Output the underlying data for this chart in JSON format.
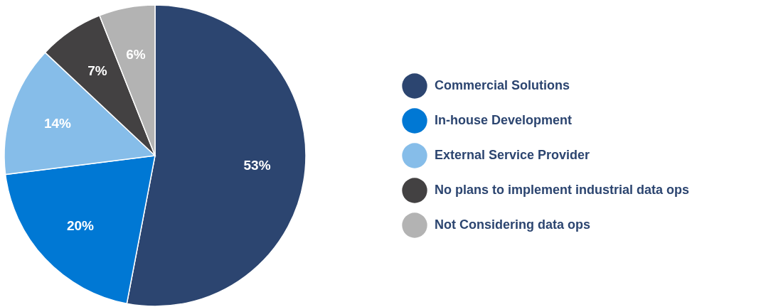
{
  "chart_data": {
    "type": "pie",
    "categories": [
      "Commercial Solutions",
      "In-house Development",
      "External Service Provider",
      "No plans to implement industrial data ops",
      "Not Considering data ops"
    ],
    "values": [
      53,
      20,
      14,
      7,
      6
    ],
    "colors": [
      "#2c4570",
      "#0078d4",
      "#86bde9",
      "#434142",
      "#b3b3b3"
    ],
    "value_labels": [
      "53%",
      "20%",
      "14%",
      "7%",
      "6%"
    ],
    "legend": "right"
  }
}
